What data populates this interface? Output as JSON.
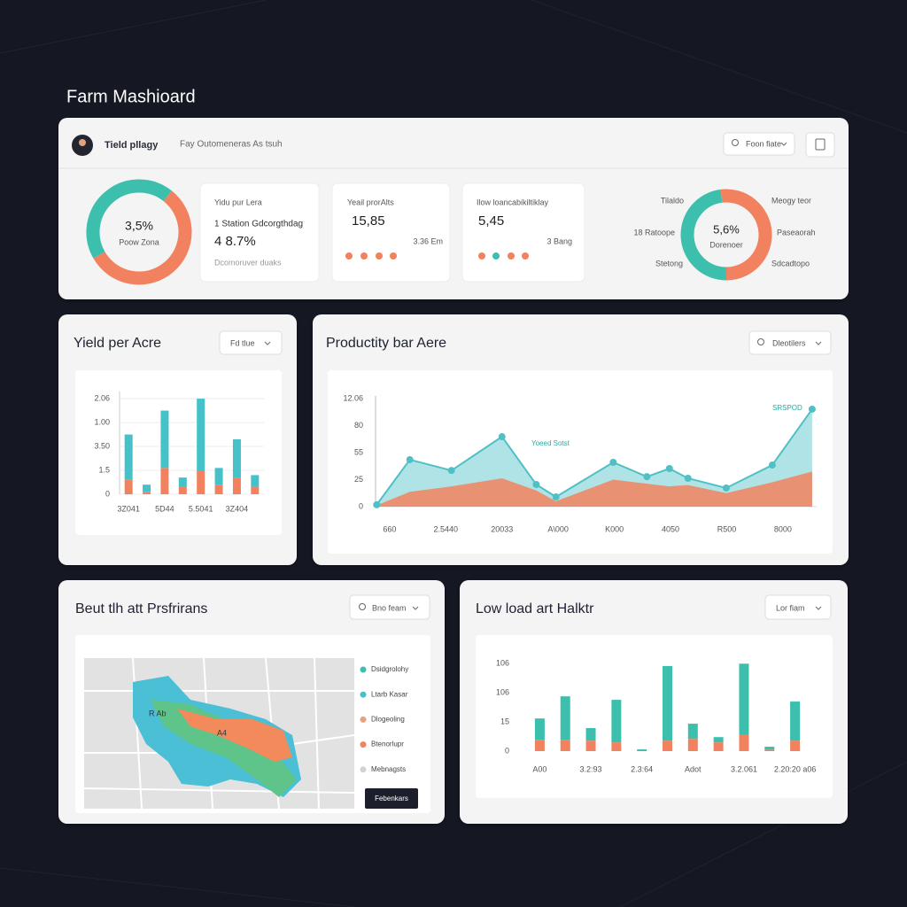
{
  "title": "Farm Mashioard",
  "header": {
    "name": "Tield pllagy",
    "subtitle": "Fay Outomeneras As tsuh",
    "select": "Foon fiate"
  },
  "kpi_cards": [
    {
      "title": "Yidu pur Lera",
      "line": "1  Station Gdcorgthdag",
      "value": "4 8.7%",
      "footer": "Dcomoruver duaks"
    },
    {
      "title": "Yeail prorAlts",
      "value": "15,85",
      "footer": "3.36 Em"
    },
    {
      "title": "Ilow loancabikiltiklay",
      "value": "5,45",
      "footer": "3 Bang"
    }
  ],
  "chart_data": [
    {
      "type": "donut",
      "center_label": "3,5%",
      "center_sub": "Poow Zona",
      "values": [
        44,
        56
      ],
      "colors": [
        "#3dbfae",
        "#f2825f"
      ]
    },
    {
      "type": "donut",
      "center_label": "5,6%",
      "center_sub": "Dorenoer",
      "values": [
        48,
        52
      ],
      "colors": [
        "#3dbfae",
        "#f2825f"
      ],
      "side_labels": [
        "Tilaldo",
        "18 Ratoope",
        "Stetong",
        "Meogy teor",
        "Paseaorah",
        "Sdcadtopo"
      ]
    },
    {
      "type": "bar",
      "stacked": true,
      "title": "Yield per Acre",
      "control": "Fd tlue",
      "categories": [
        "3Z041",
        null,
        "5D44",
        null,
        "5.5041",
        null,
        "3Z404",
        null
      ],
      "series": [
        {
          "color": "#f2825f",
          "values": [
            0.6,
            0.1,
            1.1,
            0.3,
            1.0,
            0.4,
            0.7,
            0.3
          ]
        },
        {
          "color": "#45c1c9",
          "values": [
            1.9,
            0.3,
            2.4,
            0.4,
            3.0,
            0.7,
            1.6,
            0.5
          ]
        }
      ],
      "ylim": [
        0,
        4.3
      ],
      "yticks": [
        0,
        {
          "value": 1,
          "label": "1.5"
        },
        {
          "value": 2,
          "label": "3.50"
        },
        {
          "value": 3,
          "label": "1.00"
        },
        {
          "value": 4,
          "label": "2.06"
        }
      ],
      "grid": true
    },
    {
      "type": "line",
      "area": true,
      "title": "Productity bar Aere",
      "control": "Dleotilers",
      "x": [
        0.77,
        1.36,
        2.1,
        3.0,
        3.61,
        3.96,
        4.98,
        5.58,
        5.98,
        6.31,
        6.99,
        7.81,
        8.52
      ],
      "series": [
        {
          "color": "#4fc0c5",
          "markers": true,
          "values": [
            0.07,
            1.74,
            1.34,
            2.59,
            0.82,
            0.36,
            1.64,
            1.11,
            1.41,
            1.05,
            0.69,
            1.54,
            3.61
          ]
        },
        {
          "color": "#f2825f",
          "values": [
            0.05,
            0.55,
            0.75,
            1.05,
            0.6,
            0.2,
            1.0,
            0.85,
            0.75,
            0.8,
            0.5,
            0.9,
            1.3
          ]
        }
      ],
      "xlim": [
        0.75,
        8.6
      ],
      "xticks": [
        {
          "value": 1,
          "label": "660"
        },
        {
          "value": 2,
          "label": "2.5440"
        },
        {
          "value": 3,
          "label": "20033"
        },
        {
          "value": 4,
          "label": "A\\000"
        },
        {
          "value": 5,
          "label": "K000"
        },
        {
          "value": 6,
          "label": "4050"
        },
        {
          "value": 7,
          "label": "R500"
        },
        {
          "value": 8,
          "label": "8000"
        }
      ],
      "ylim": [
        0,
        4.1
      ],
      "yticks": [
        0,
        {
          "value": 1,
          "label": "25"
        },
        {
          "value": 2,
          "label": "55"
        },
        {
          "value": 3,
          "label": "80"
        },
        {
          "value": 4,
          "label": "12.06"
        }
      ],
      "grid": false,
      "annotations": [
        "Yoeed Sotst",
        "SRSPOD"
      ]
    },
    {
      "type": "bar",
      "stacked": true,
      "title": "Low load art Halktr",
      "control": "Lor fiam",
      "categories": [
        "A00",
        null,
        "3.2:93",
        null,
        "2.3:64",
        null,
        "Adot",
        null,
        "3.2.061",
        null,
        "2.20:20 a06"
      ],
      "series": [
        {
          "color": "#f2825f",
          "values": [
            0.39,
            0.39,
            0.36,
            0.3,
            0,
            0.36,
            0.42,
            0.3,
            0.55,
            0.05,
            0.36
          ]
        },
        {
          "color": "#3dbfae",
          "values": [
            0.73,
            1.49,
            0.43,
            1.46,
            0.06,
            2.56,
            0.52,
            0.18,
            2.45,
            0.1,
            1.34
          ]
        }
      ],
      "ylim": [
        0,
        3.1
      ],
      "yticks": [
        0,
        {
          "value": 1,
          "label": "15"
        },
        {
          "value": 2,
          "label": "106"
        },
        {
          "value": 3,
          "label": "106"
        }
      ],
      "grid": false
    }
  ],
  "map": {
    "title": "Beut tlh att Prsfrirans",
    "control": "Bno feam",
    "labels": [
      "R Ab",
      "A4"
    ],
    "legend": [
      {
        "label": "Dsidgrolohy",
        "color": "#3dbfae"
      },
      {
        "label": "Ltarb Kasar",
        "color": "#45c1c9"
      },
      {
        "label": "Dlogeoling",
        "color": "#e9a07f"
      },
      {
        "label": "Btenorlupr",
        "color": "#f2825f"
      },
      {
        "label": "Mebnagsts",
        "color": "#d3d3d3"
      }
    ],
    "button": "Febenkars"
  }
}
